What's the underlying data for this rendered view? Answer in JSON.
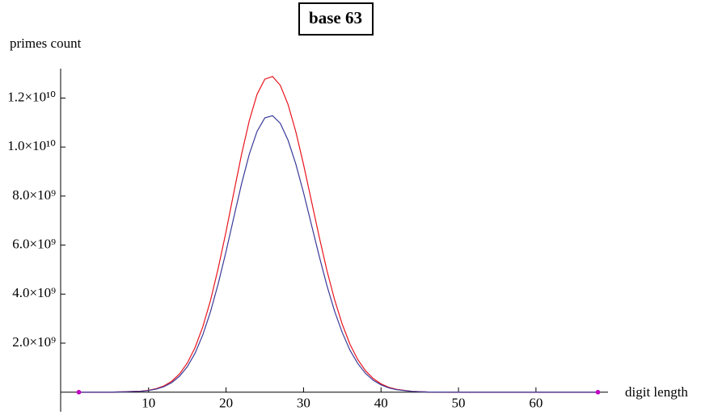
{
  "chart_data": {
    "type": "line",
    "title": "base 63",
    "x_label": "digit length",
    "y_label": "primes count",
    "x": [
      1,
      5,
      9,
      10,
      11,
      12,
      13,
      14,
      15,
      16,
      17,
      18,
      19,
      20,
      21,
      22,
      23,
      24,
      25,
      26,
      27,
      28,
      29,
      30,
      31,
      32,
      33,
      34,
      35,
      36,
      37,
      38,
      39,
      40,
      41,
      42,
      44,
      46,
      50,
      68
    ],
    "series": [
      {
        "color": "#e8141c",
        "values": [
          0,
          0,
          39000000.0,
          76000000.0,
          143000000.0,
          258000000.0,
          448000000.0,
          746000000.0,
          1190000000.0,
          1820000000.0,
          2670000000.0,
          3750000000.0,
          5070000000.0,
          6550000000.0,
          8140000000.0,
          9700000000.0,
          11080000000.0,
          12150000000.0,
          12770000000.0,
          12880000000.0,
          12520000000.0,
          11740000000.0,
          10630000000.0,
          9290000000.0,
          7830000000.0,
          6370000000.0,
          4990000000.0,
          3780000000.0,
          2770000000.0,
          1950000000.0,
          1330000000.0,
          873000000.0,
          553000000.0,
          339000000.0,
          200000000.0,
          114000000.0,
          33000000.0,
          8000000.0,
          0,
          0
        ]
      },
      {
        "color": "#3a3a9a",
        "values": [
          0,
          0,
          34000000.0,
          67000000.0,
          125000000.0,
          226000000.0,
          392000000.0,
          653000000.0,
          1040000000.0,
          1590000000.0,
          2340000000.0,
          3290000000.0,
          4440000000.0,
          5740000000.0,
          7130000000.0,
          8500000000.0,
          9710000000.0,
          10640000000.0,
          11190000000.0,
          11280000000.0,
          10970000000.0,
          10280000000.0,
          9310000000.0,
          8140000000.0,
          6860000000.0,
          5580000000.0,
          4370000000.0,
          3310000000.0,
          2430000000.0,
          1710000000.0,
          1170000000.0,
          765000000.0,
          484000000.0,
          297000000.0,
          175000000.0,
          100000000.0,
          29000000.0,
          7000000.0,
          0,
          0
        ]
      }
    ],
    "markers": {
      "color": "#c000c0",
      "x": [
        1,
        68
      ],
      "values": [
        0,
        0
      ]
    },
    "xlim": [
      -1.35,
      69.3
    ],
    "ylim": [
      -800000000,
      13200000000
    ],
    "xticks": [
      10,
      20,
      30,
      40,
      50,
      60
    ],
    "yticks": [
      {
        "value": 2000000000,
        "label": "2.0×10⁹"
      },
      {
        "value": 4000000000,
        "label": "4.0×10⁹"
      },
      {
        "value": 6000000000,
        "label": "6.0×10⁹"
      },
      {
        "value": 8000000000,
        "label": "8.0×10⁹"
      },
      {
        "value": 10000000000,
        "label": "1.0×10¹⁰"
      },
      {
        "value": 12000000000,
        "label": "1.2×10¹⁰"
      }
    ]
  }
}
